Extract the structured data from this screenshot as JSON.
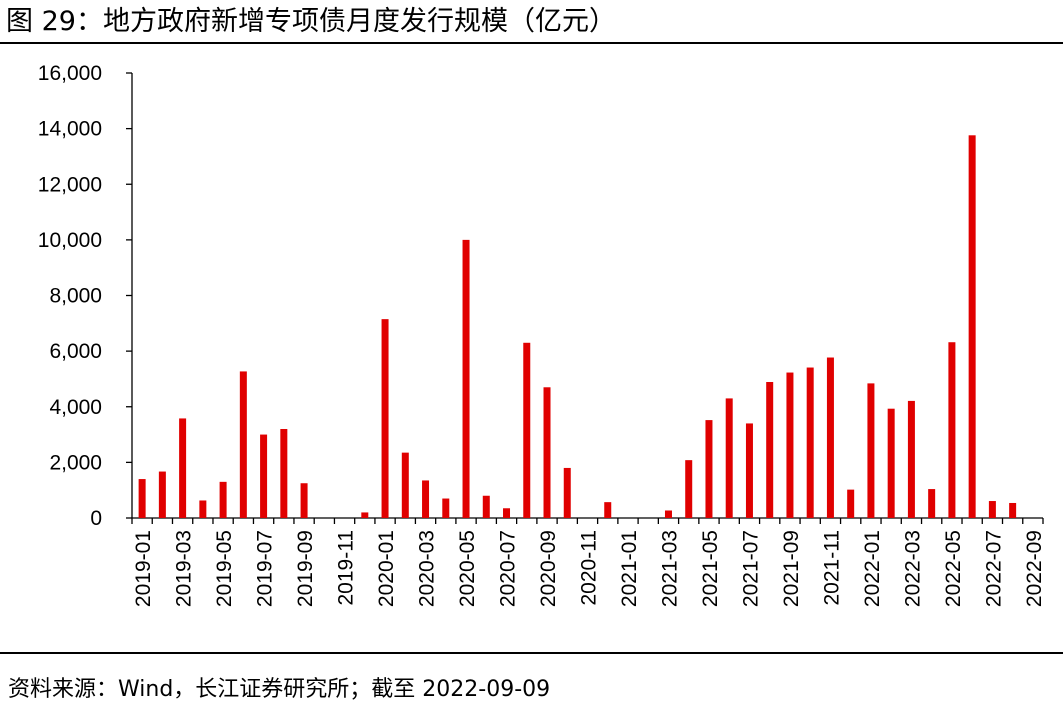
{
  "title": "图 29：地方政府新增专项债月度发行规模（亿元）",
  "source": "资料来源：Wind，长江证券研究所；截至 2022-09-09",
  "chart_data": {
    "type": "bar",
    "title": "图 29：地方政府新增专项债月度发行规模（亿元）",
    "xlabel": "",
    "ylabel": "",
    "ylim": [
      0,
      16000
    ],
    "yticks": [
      0,
      2000,
      4000,
      6000,
      8000,
      10000,
      12000,
      14000,
      16000
    ],
    "ytick_labels": [
      "0",
      "2,000",
      "4,000",
      "6,000",
      "8,000",
      "10,000",
      "12,000",
      "14,000",
      "16,000"
    ],
    "bar_color": "#E00000",
    "grid": false,
    "legend": "none",
    "categories": [
      "2019-01",
      "2019-02",
      "2019-03",
      "2019-04",
      "2019-05",
      "2019-06",
      "2019-07",
      "2019-08",
      "2019-09",
      "2019-10",
      "2019-11",
      "2019-12",
      "2020-01",
      "2020-02",
      "2020-03",
      "2020-04",
      "2020-05",
      "2020-06",
      "2020-07",
      "2020-08",
      "2020-09",
      "2020-10",
      "2020-11",
      "2020-12",
      "2021-01",
      "2021-02",
      "2021-03",
      "2021-04",
      "2021-05",
      "2021-06",
      "2021-07",
      "2021-08",
      "2021-09",
      "2021-10",
      "2021-11",
      "2021-12",
      "2022-01",
      "2022-02",
      "2022-03",
      "2022-04",
      "2022-05",
      "2022-06",
      "2022-07",
      "2022-08",
      "2022-09"
    ],
    "xtick_labels": [
      "2019-01",
      "2019-03",
      "2019-05",
      "2019-07",
      "2019-09",
      "2019-11",
      "2020-01",
      "2020-03",
      "2020-05",
      "2020-07",
      "2020-09",
      "2020-11",
      "2021-01",
      "2021-03",
      "2021-05",
      "2021-07",
      "2021-09",
      "2021-11",
      "2022-01",
      "2022-03",
      "2022-05",
      "2022-07",
      "2022-09"
    ],
    "values": [
      1400,
      1670,
      3580,
      630,
      1300,
      5270,
      3000,
      3200,
      1250,
      0,
      0,
      200,
      7150,
      2350,
      1350,
      700,
      10000,
      800,
      350,
      6300,
      4700,
      1800,
      0,
      570,
      0,
      0,
      270,
      2080,
      3520,
      4300,
      3400,
      4890,
      5230,
      5410,
      5770,
      1020,
      4840,
      3930,
      4210,
      1040,
      6320,
      13760,
      610,
      540,
      0
    ]
  }
}
